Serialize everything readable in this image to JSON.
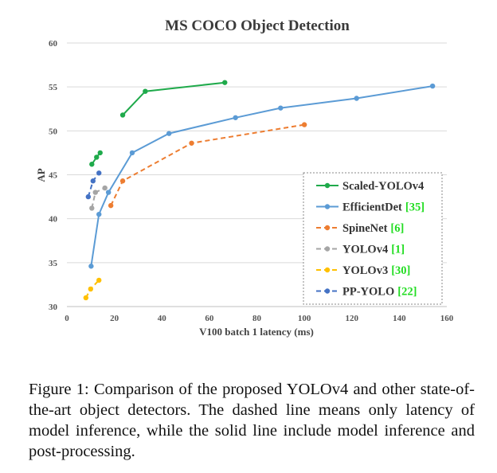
{
  "chart_data": {
    "type": "line",
    "title": "MS COCO Object Detection",
    "xlabel": "V100 batch 1 latency (ms)",
    "ylabel": "AP",
    "xlim": [
      0,
      160
    ],
    "ylim": [
      30,
      60
    ],
    "xticks": [
      "0",
      "20",
      "40",
      "60",
      "80",
      "100",
      "120",
      "140",
      "160"
    ],
    "yticks": [
      "30",
      "35",
      "40",
      "45",
      "50",
      "55",
      "60"
    ],
    "grid": "horizontal",
    "legend_position": "bottom-right",
    "series": [
      {
        "name": "Scaled-YOLOv4",
        "ref": "",
        "color": "#1faa4b",
        "dashed": false,
        "clusters": [
          {
            "x": [
              10.5,
              12.5,
              14.0
            ],
            "y": [
              46.2,
              47.0,
              47.5
            ]
          },
          {
            "x": [
              23.5,
              33.0,
              66.5
            ],
            "y": [
              51.8,
              54.5,
              55.5
            ]
          }
        ]
      },
      {
        "name": "EfficientDet",
        "ref": "[35]",
        "color": "#5b9bd5",
        "dashed": false,
        "clusters": [
          {
            "x": [
              10.2,
              13.5,
              17.5,
              27.5,
              43.0,
              71.0,
              90.0,
              122.0,
              154.0
            ],
            "y": [
              34.6,
              40.5,
              43.0,
              47.5,
              49.7,
              51.5,
              52.6,
              53.7,
              55.1
            ]
          }
        ]
      },
      {
        "name": "SpineNet",
        "ref": "[6]",
        "color": "#ed7d31",
        "dashed": true,
        "clusters": [
          {
            "x": [
              18.5,
              23.5,
              52.5,
              100.0
            ],
            "y": [
              41.5,
              44.3,
              48.6,
              50.7
            ]
          }
        ]
      },
      {
        "name": "YOLOv4",
        "ref": "[1]",
        "color": "#a5a5a5",
        "dashed": true,
        "clusters": [
          {
            "x": [
              10.5,
              12.0,
              16.0
            ],
            "y": [
              41.2,
              43.0,
              43.5
            ]
          }
        ]
      },
      {
        "name": "YOLOv3",
        "ref": "[30]",
        "color": "#ffc000",
        "dashed": true,
        "clusters": [
          {
            "x": [
              8.0,
              10.0,
              13.5
            ],
            "y": [
              31.0,
              32.0,
              33.0
            ]
          }
        ]
      },
      {
        "name": "PP-YOLO",
        "ref": "[22]",
        "color": "#4472c4",
        "dashed": true,
        "clusters": [
          {
            "x": [
              9.0,
              11.0,
              13.5
            ],
            "y": [
              42.5,
              44.3,
              45.2
            ]
          }
        ]
      }
    ]
  },
  "caption": {
    "text": "Figure 1: Comparison of the proposed YOLOv4 and other state-of-the-art object detectors.  The dashed line means only latency of model inference, while the solid line include model inference and post-processing."
  }
}
